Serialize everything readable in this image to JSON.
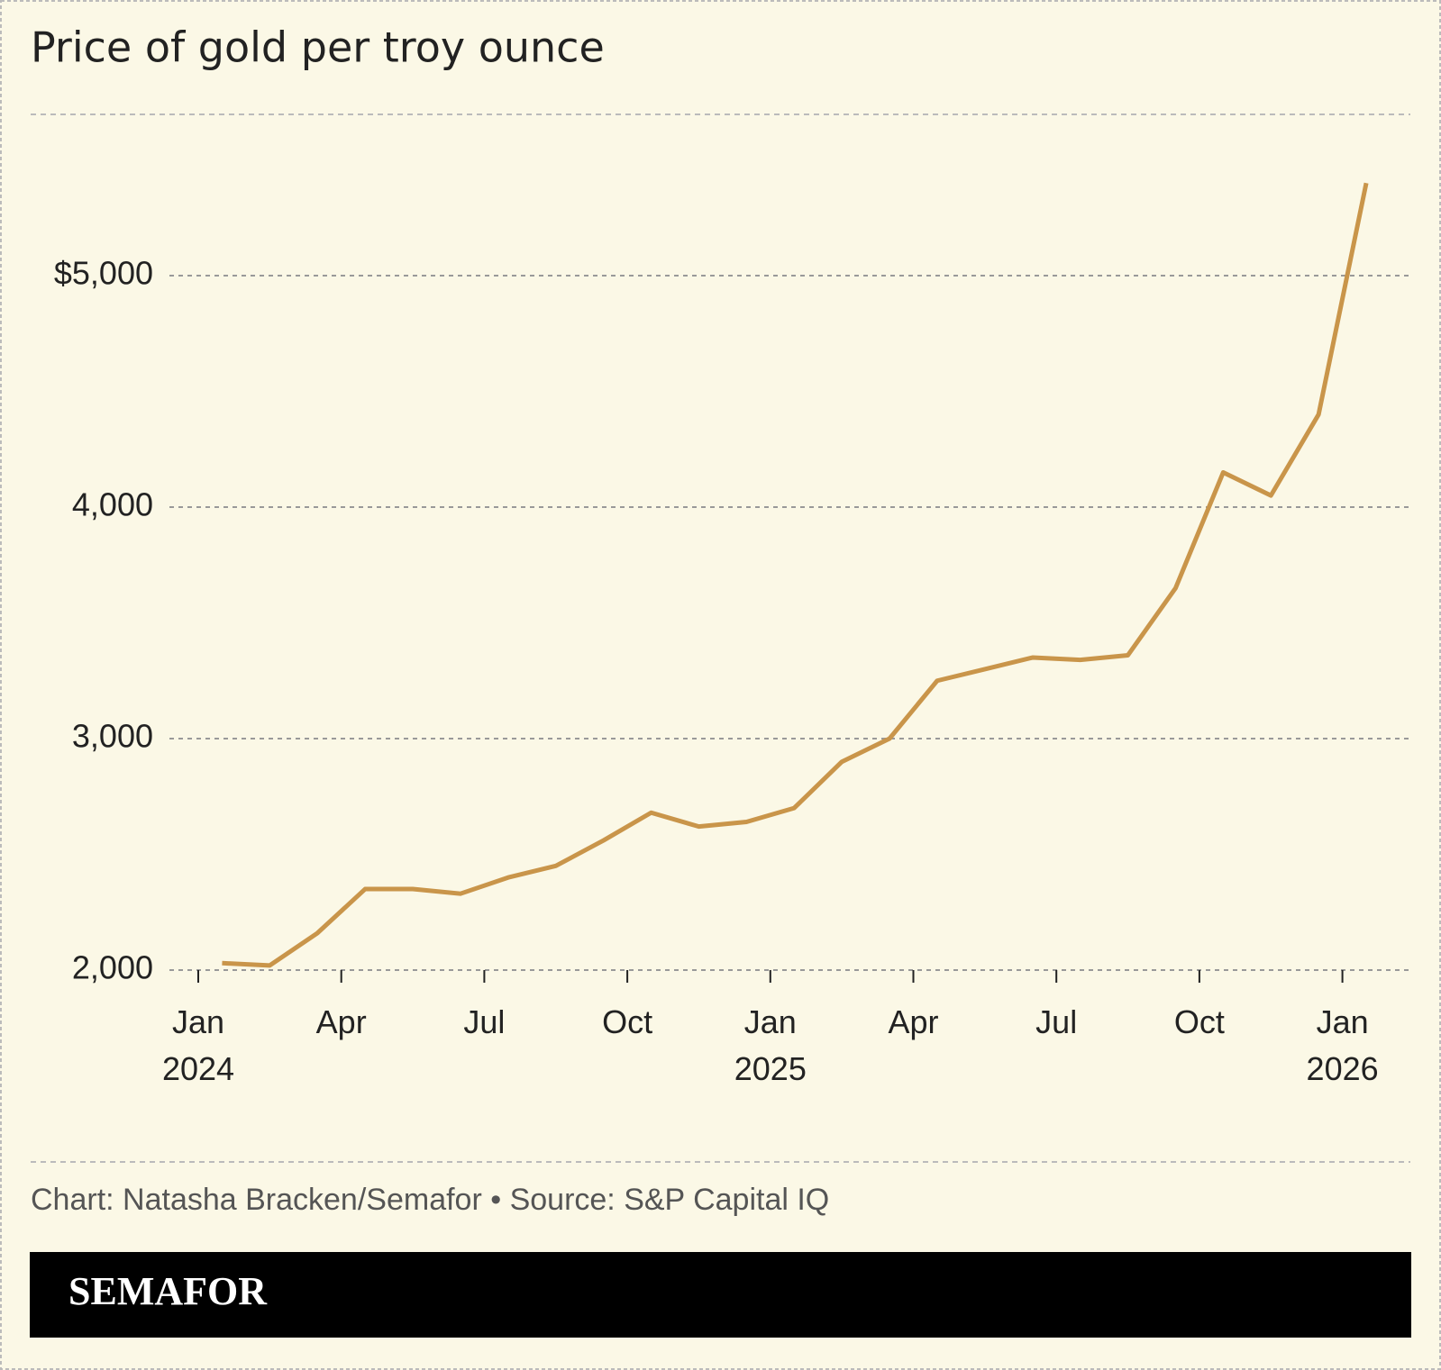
{
  "chart_data": {
    "type": "line",
    "title": "Price of gold per troy ounce",
    "source": "Chart: Natasha Bracken/Semafor • Source: S&P Capital IQ",
    "brand": "SEMAFOR",
    "x": [
      "2024-01",
      "2024-02",
      "2024-03",
      "2024-04",
      "2024-05",
      "2024-06",
      "2024-07",
      "2024-08",
      "2024-09",
      "2024-10",
      "2024-11",
      "2024-12",
      "2025-01",
      "2025-02",
      "2025-03",
      "2025-04",
      "2025-05",
      "2025-06",
      "2025-07",
      "2025-08",
      "2025-09",
      "2025-10",
      "2025-11",
      "2025-12",
      "2026-01"
    ],
    "series": [
      {
        "name": "Gold",
        "color": "#c9954a",
        "values": [
          2030,
          2020,
          2160,
          2350,
          2350,
          2330,
          2400,
          2450,
          2560,
          2680,
          2620,
          2640,
          2700,
          2900,
          3000,
          3250,
          3300,
          3350,
          3340,
          3360,
          3650,
          4150,
          4050,
          4400,
          5400
        ]
      }
    ],
    "xticks": [
      {
        "value": "2024-01",
        "label": "Jan 2024"
      },
      {
        "value": "2024-04",
        "label": "Apr"
      },
      {
        "value": "2024-07",
        "label": "Jul"
      },
      {
        "value": "2024-10",
        "label": "Oct"
      },
      {
        "value": "2025-01",
        "label": "Jan 2025"
      },
      {
        "value": "2025-04",
        "label": "Apr"
      },
      {
        "value": "2025-07",
        "label": "Jul"
      },
      {
        "value": "2025-10",
        "label": "Oct"
      },
      {
        "value": "2026-01",
        "label": "Jan 2026"
      }
    ],
    "ylim": [
      2000,
      5500
    ],
    "yticks": [
      {
        "value": 2000,
        "label": "2,000"
      },
      {
        "value": 3000,
        "label": "3,000"
      },
      {
        "value": 4000,
        "label": "4,000"
      },
      {
        "value": 5000,
        "label": "$5,000"
      }
    ],
    "grid": true
  }
}
